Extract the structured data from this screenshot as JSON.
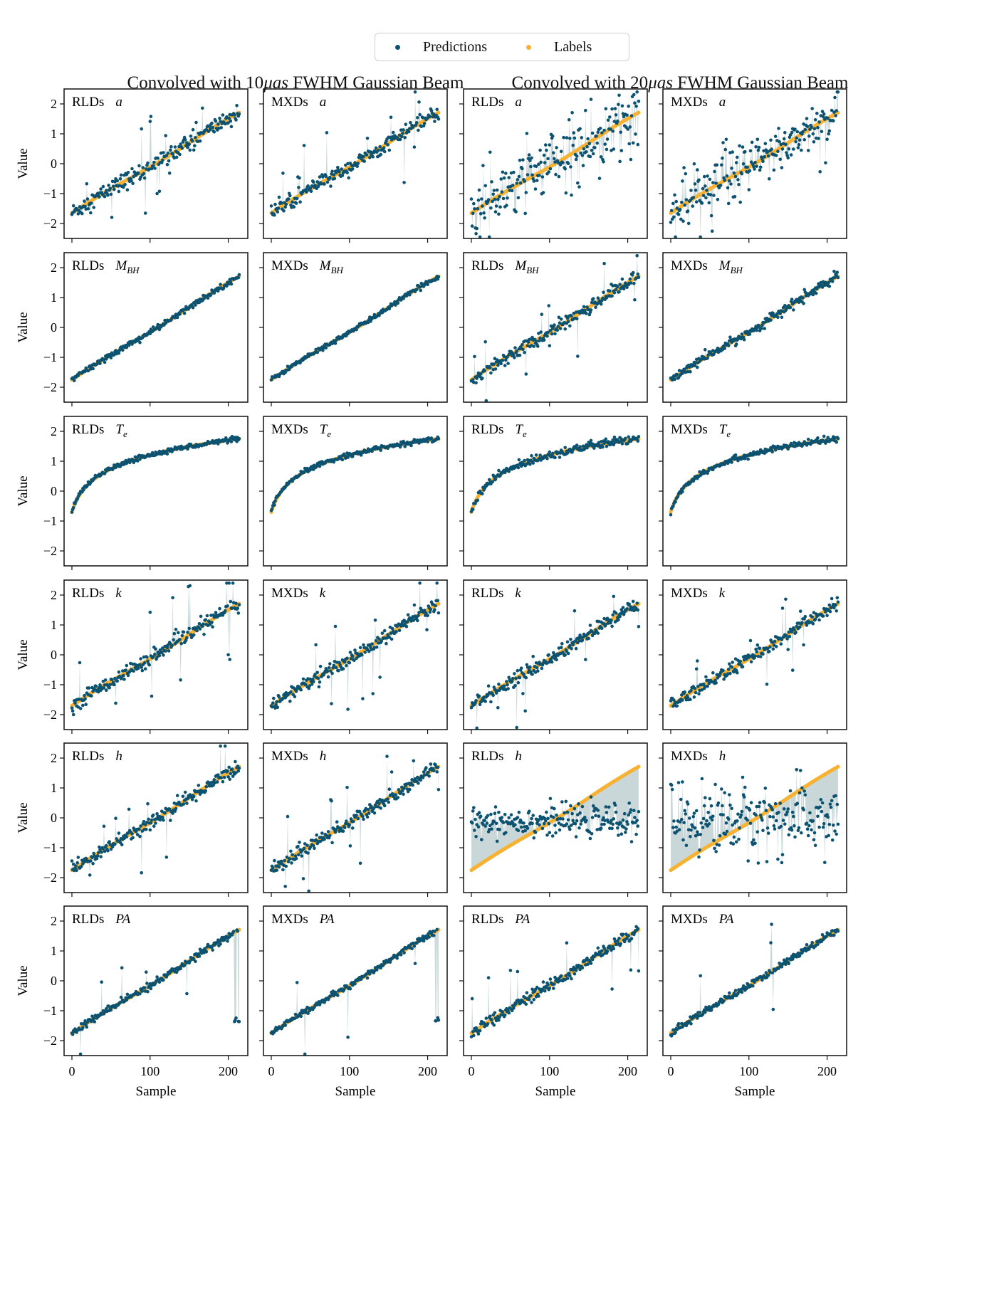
{
  "legend": {
    "predictions_label": "Predictions",
    "labels_label": "Labels",
    "predictions_color": "#0c5271",
    "labels_color": "#f7b233",
    "fill_color": "#9fb7ba"
  },
  "column_titles": [
    {
      "pre": "Convolved with 10",
      "em": "μas",
      "post": " FWHM Gaussian Beam"
    },
    {
      "pre": "Convolved with 20",
      "em": "μas",
      "post": " FWHM Gaussian Beam"
    }
  ],
  "chart_data": {
    "type": "scatter",
    "grid": false,
    "n_samples": 215,
    "xlim": [
      -10,
      225
    ],
    "ylim": [
      -2.5,
      2.5
    ],
    "xticks": [
      0,
      100,
      200
    ],
    "yticks": [
      2,
      1,
      0,
      -1,
      -2
    ],
    "xlabel": "Sample",
    "ylabel": "Value",
    "series_names": [
      "Predictions",
      "Labels"
    ],
    "columns": [
      {
        "dataset": "RLDs",
        "beam": "10μas"
      },
      {
        "dataset": "MXDs",
        "beam": "10μas"
      },
      {
        "dataset": "RLDs",
        "beam": "20μas"
      },
      {
        "dataset": "MXDs",
        "beam": "20μas"
      }
    ],
    "rows": [
      {
        "param": "a",
        "sub": "",
        "label_range": [
          -1.65,
          1.7
        ],
        "label_shape": "linear",
        "noise": [
          0.15,
          0.12,
          0.5,
          0.4
        ],
        "outliers": [
          0.06,
          0.04,
          0.1,
          0.08
        ]
      },
      {
        "param": "M",
        "sub": "BH",
        "label_range": [
          -1.75,
          1.7
        ],
        "label_shape": "linear",
        "noise": [
          0.05,
          0.04,
          0.12,
          0.08
        ],
        "outliers": [
          0,
          0,
          0.04,
          0
        ]
      },
      {
        "param": "T",
        "sub": "e",
        "label_range": [
          -0.7,
          1.75
        ],
        "label_shape": "log",
        "noise": [
          0.04,
          0.04,
          0.07,
          0.05
        ],
        "outliers": [
          0,
          0,
          0,
          0
        ]
      },
      {
        "param": "k",
        "sub": "",
        "label_range": [
          -1.7,
          1.7
        ],
        "label_shape": "linear",
        "noise": [
          0.12,
          0.12,
          0.12,
          0.12
        ],
        "outliers": [
          0.04,
          0.04,
          0.03,
          0.03
        ]
      },
      {
        "param": "h",
        "sub": "",
        "label_range": [
          -1.75,
          1.7
        ],
        "label_shape": "linear",
        "noise": [
          0.12,
          0.12,
          0.25,
          0.6
        ],
        "outliers": [
          0.03,
          0.03,
          0,
          0
        ]
      },
      {
        "param": "PA",
        "sub": "",
        "label_range": [
          -1.75,
          1.7
        ],
        "label_shape": "linear",
        "noise": [
          0.06,
          0.05,
          0.1,
          0.06
        ],
        "outliers": [
          0.02,
          0.02,
          0.03,
          0.02
        ]
      }
    ]
  }
}
